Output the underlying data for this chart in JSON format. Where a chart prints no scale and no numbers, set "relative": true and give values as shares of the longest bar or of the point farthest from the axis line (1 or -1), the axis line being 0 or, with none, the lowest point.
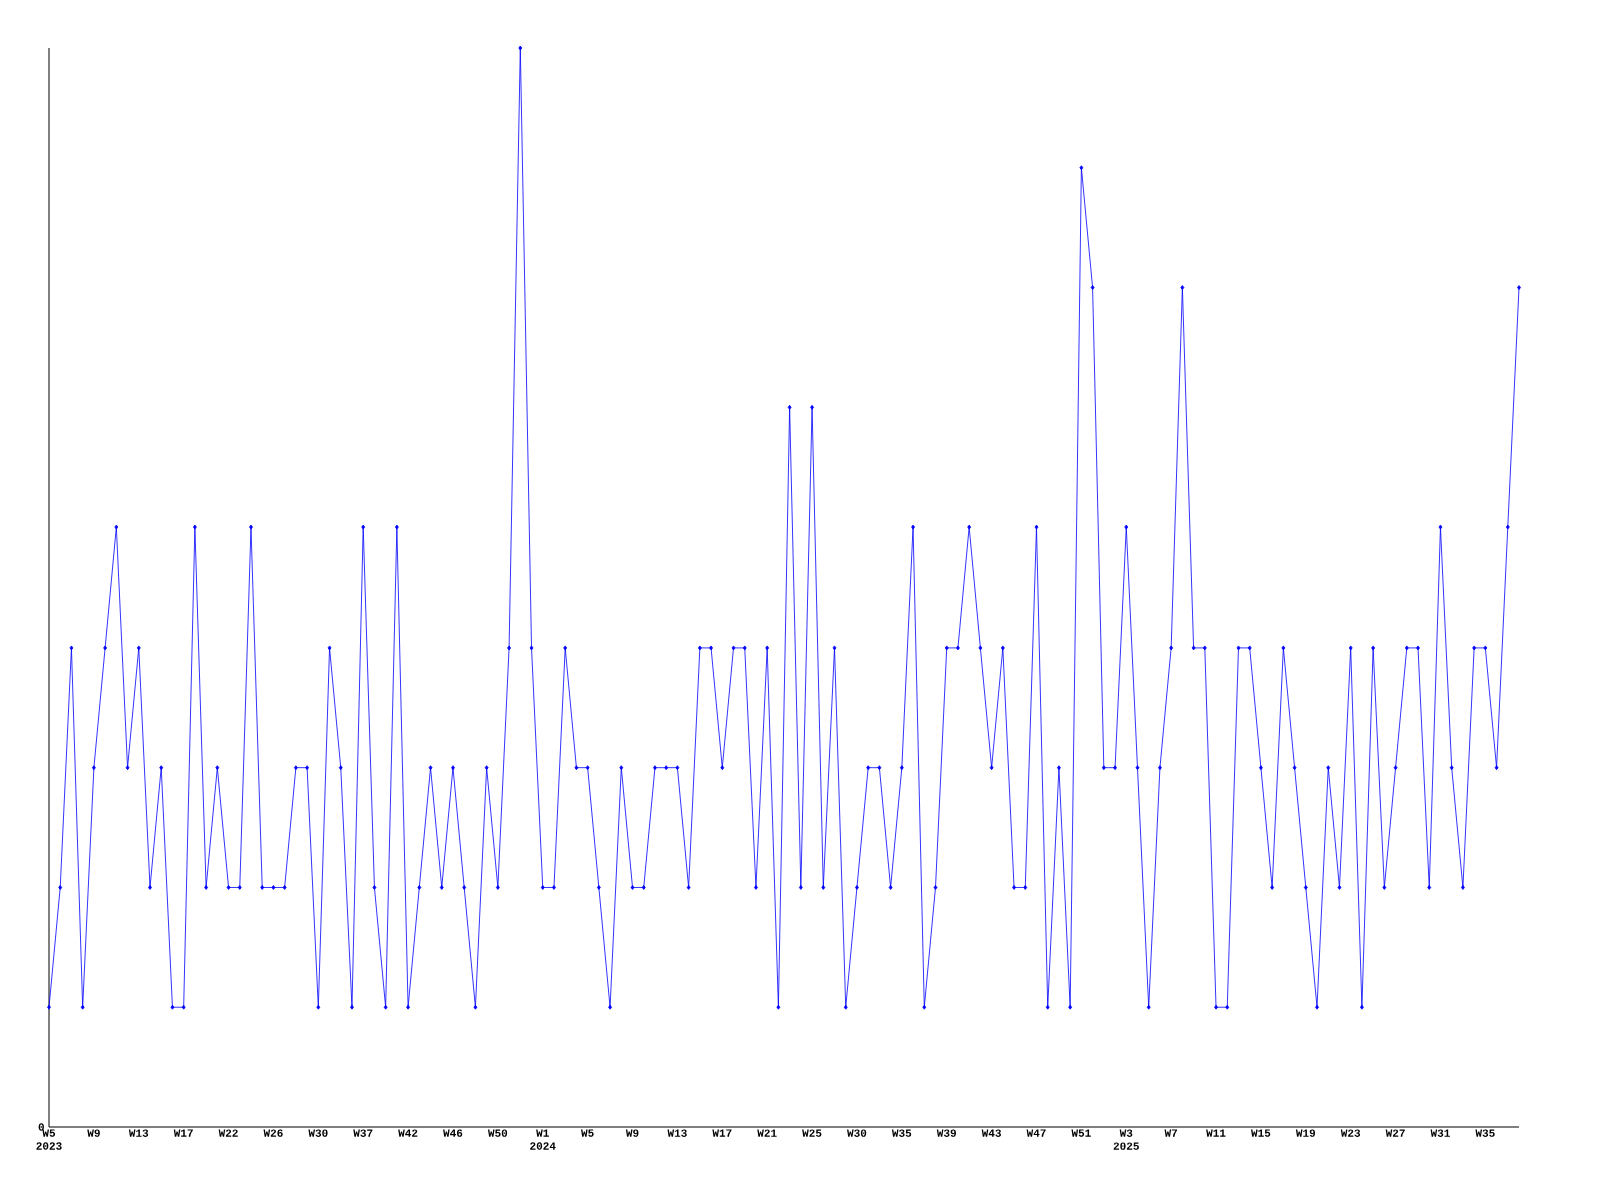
{
  "chart_data": {
    "type": "line",
    "relative": true,
    "color": "#0000ff",
    "marker": "diamond",
    "line_style": "solid",
    "grid": false,
    "annotations": [
      "0"
    ],
    "categories": [
      "W5 2023",
      null,
      null,
      null,
      "W9",
      null,
      null,
      null,
      "W13",
      null,
      null,
      null,
      "W17",
      null,
      null,
      null,
      "W22",
      null,
      null,
      null,
      "W26",
      null,
      null,
      null,
      "W30",
      null,
      null,
      null,
      "W37",
      null,
      null,
      null,
      "W42",
      null,
      null,
      null,
      "W46",
      null,
      null,
      null,
      "W50",
      null,
      null,
      null,
      "W1 2024",
      null,
      null,
      null,
      "W5",
      null,
      null,
      null,
      "W9",
      null,
      null,
      null,
      "W13",
      null,
      null,
      null,
      "W17",
      null,
      null,
      null,
      "W21",
      null,
      null,
      null,
      "W25",
      null,
      null,
      null,
      "W30",
      null,
      null,
      null,
      "W35",
      null,
      null,
      null,
      "W39",
      null,
      null,
      null,
      "W43",
      null,
      null,
      null,
      "W47",
      null,
      null,
      null,
      "W51",
      null,
      null,
      null,
      "W3 2025",
      null,
      null,
      null,
      "W7",
      null,
      null,
      null,
      "W11",
      null,
      null,
      null,
      "W15",
      null,
      null,
      null,
      "W19",
      null,
      null,
      null,
      "W23",
      null,
      null,
      null,
      "W27",
      null,
      null,
      null,
      "W31",
      null,
      null,
      null,
      "W35",
      null,
      null,
      null
    ],
    "values": [
      0.111,
      0.222,
      0.444,
      0.111,
      0.333,
      0.444,
      0.556,
      0.333,
      0.444,
      0.222,
      0.333,
      0.111,
      0.111,
      0.556,
      0.222,
      0.333,
      0.222,
      0.222,
      0.556,
      0.222,
      0.222,
      0.222,
      0.333,
      0.333,
      0.111,
      0.444,
      0.333,
      0.111,
      0.556,
      0.222,
      0.111,
      0.556,
      0.111,
      0.222,
      0.333,
      0.222,
      0.333,
      0.222,
      0.111,
      0.333,
      0.222,
      0.444,
      1,
      0.444,
      0.222,
      0.222,
      0.444,
      0.333,
      0.333,
      0.222,
      0.111,
      0.333,
      0.222,
      0.222,
      0.333,
      0.333,
      0.333,
      0.222,
      0.444,
      0.444,
      0.333,
      0.444,
      0.444,
      0.222,
      0.444,
      0.111,
      0.667,
      0.222,
      0.667,
      0.222,
      0.444,
      0.111,
      0.222,
      0.333,
      0.333,
      0.222,
      0.333,
      0.556,
      0.111,
      0.222,
      0.444,
      0.444,
      0.556,
      0.444,
      0.333,
      0.444,
      0.222,
      0.222,
      0.556,
      0.111,
      0.333,
      0.111,
      0.889,
      0.778,
      0.333,
      0.333,
      0.556,
      0.333,
      0.111,
      0.333,
      0.444,
      0.778,
      0.444,
      0.444,
      0.111,
      0.111,
      0.444,
      0.444,
      0.333,
      0.222,
      0.444,
      0.333,
      0.222,
      0.111,
      0.333,
      0.222,
      0.444,
      0.111,
      0.444,
      0.222,
      0.333,
      0.444,
      0.444,
      0.222,
      0.556,
      0.333,
      0.222,
      0.444,
      0.444,
      0.333,
      0.556,
      0.778
    ]
  }
}
